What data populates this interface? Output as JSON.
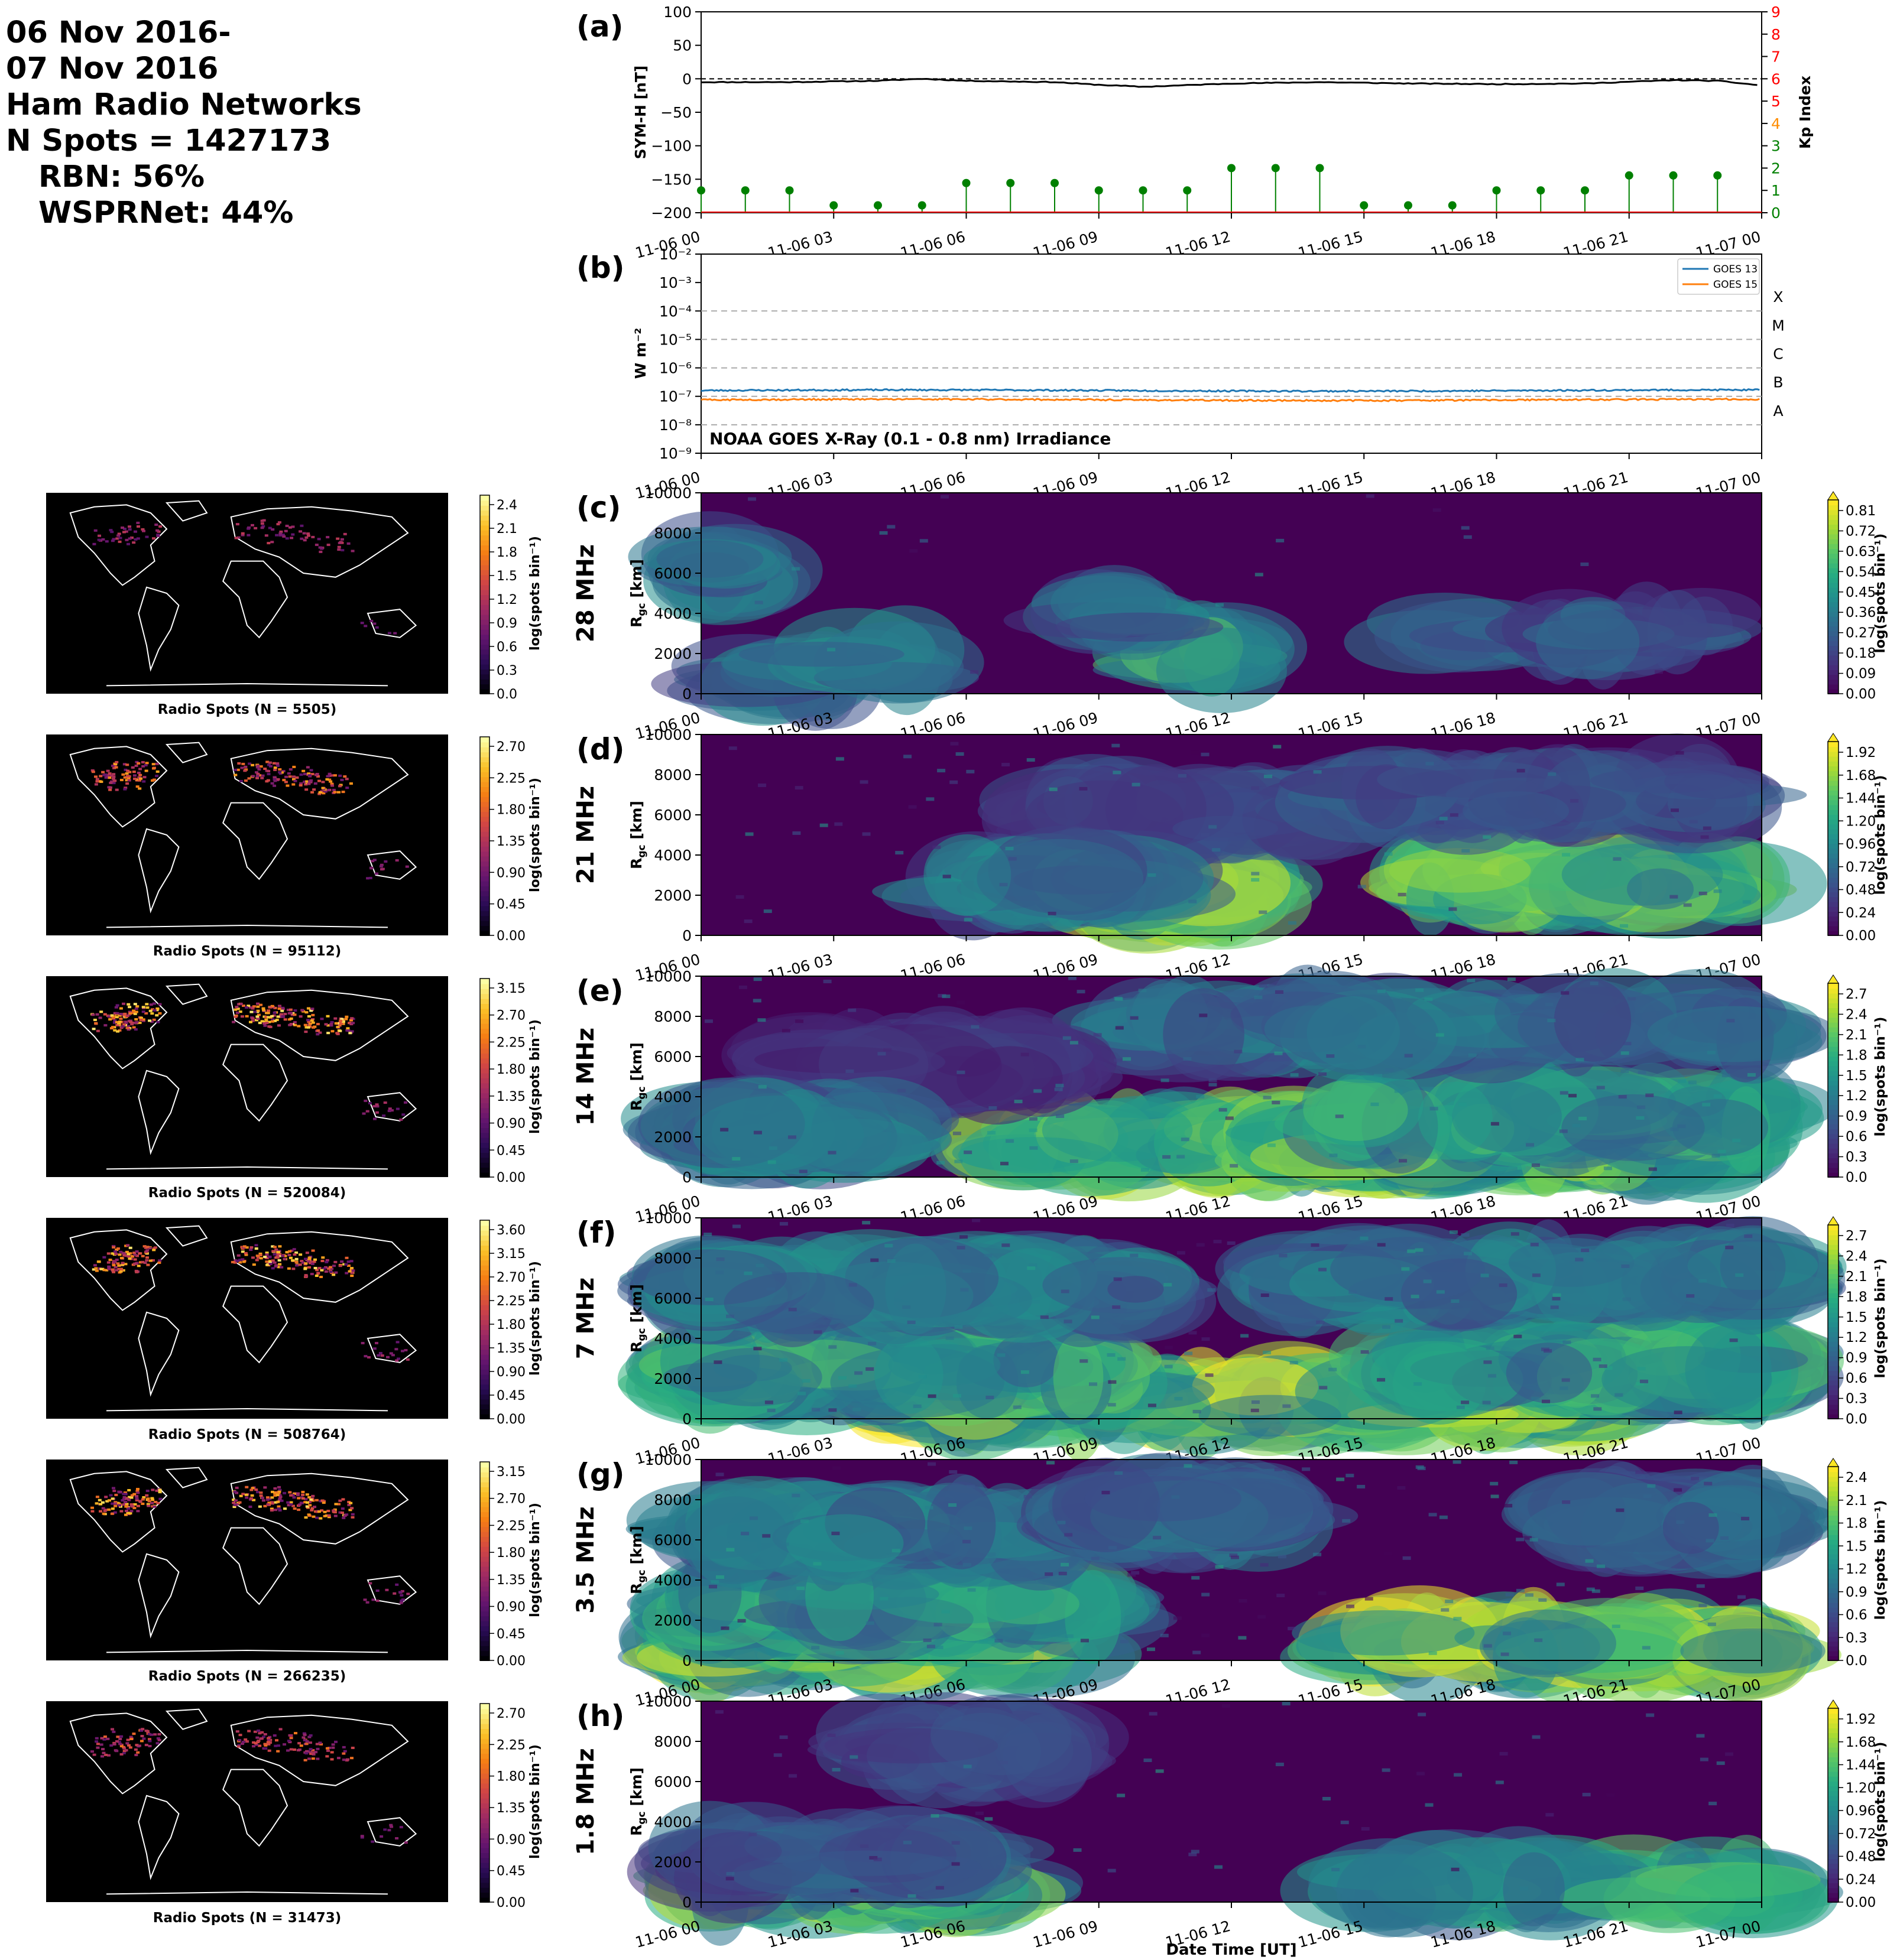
{
  "header": {
    "line1": "06 Nov 2016-",
    "line2": "07 Nov 2016",
    "line3": "Ham Radio Networks",
    "line4": "N Spots = 1427173",
    "line5": "RBN: 56%",
    "line6": "WSPRNet: 44%"
  },
  "colors": {
    "kp_green": "#008000",
    "kp_orange": "#ff8c00",
    "kp_red": "#ff0000",
    "goes13": "#1f77b4",
    "goes15": "#ff7f0e",
    "viridis_low": "#440154",
    "viridis_high": "#fde725",
    "map_bg": "#000000"
  },
  "time_ticks": [
    "11-06 00",
    "11-06 03",
    "11-06 06",
    "11-06 09",
    "11-06 12",
    "11-06 15",
    "11-06 18",
    "11-06 21",
    "11-07 00"
  ],
  "xlabel": "Date Time [UT]",
  "chart_data": [
    {
      "id": "a",
      "panel_label": "(a)",
      "type": "line",
      "ylabel": "SYM-H [nT]",
      "ylim": [
        -200,
        100
      ],
      "yticks": [
        "100",
        "50",
        "0",
        "−50",
        "−100",
        "−150",
        "−200"
      ],
      "x": [
        "11-06 00",
        "11-06 02",
        "11-06 04",
        "11-06 05",
        "11-06 06",
        "11-06 08",
        "11-06 09",
        "11-06 10",
        "11-06 12",
        "11-06 14",
        "11-06 16",
        "11-06 18",
        "11-06 20",
        "11-06 22",
        "11-06 23",
        "11-07 00"
      ],
      "symh": [
        -5,
        -5,
        -3,
        0,
        -3,
        -5,
        -9,
        -12,
        -7,
        -5,
        -7,
        -8,
        -7,
        -2,
        -3,
        -10
      ],
      "y2label": "Kp Index",
      "y2lim": [
        0,
        9
      ],
      "y2ticks": [
        "0",
        "1",
        "2",
        "3",
        "4",
        "5",
        "6",
        "7",
        "8",
        "9"
      ],
      "kp_x_hours": [
        0,
        1,
        2,
        3,
        4,
        5,
        6,
        7,
        8,
        9,
        10,
        11,
        12,
        13,
        14,
        15,
        16,
        17,
        18,
        19,
        20,
        21,
        22,
        23
      ],
      "kp": [
        1.0,
        1.0,
        1.0,
        0.33,
        0.33,
        0.33,
        1.33,
        1.33,
        1.33,
        1.0,
        1.0,
        1.0,
        2.0,
        2.0,
        2.0,
        0.33,
        0.33,
        0.33,
        1.0,
        1.0,
        1.0,
        1.67,
        1.67,
        1.67
      ]
    },
    {
      "id": "b",
      "panel_label": "(b)",
      "type": "line",
      "ylabel": "W m⁻²",
      "yscale": "log",
      "ylim": [
        1e-09,
        0.01
      ],
      "yticks": [
        "10⁻⁹",
        "10⁻⁸",
        "10⁻⁷",
        "10⁻⁶",
        "10⁻⁵",
        "10⁻⁴",
        "10⁻³",
        "10⁻²"
      ],
      "flare_classes": [
        "A",
        "B",
        "C",
        "M",
        "X"
      ],
      "annotation": "NOAA GOES X-Ray (0.1 - 0.8 nm) Irradiance",
      "series": [
        {
          "name": "GOES 13",
          "value": 1.6e-07
        },
        {
          "name": "GOES 15",
          "value": 7.5e-08
        }
      ]
    },
    {
      "type": "heatmap",
      "panels": [
        {
          "id": "c",
          "panel_label": "(c)",
          "band": "28 MHz",
          "map_title": "Radio Spots (N = 5505)",
          "map_cbar": [
            "0.0",
            "0.3",
            "0.6",
            "0.9",
            "1.2",
            "1.5",
            "1.8",
            "2.1",
            "2.4"
          ],
          "rgc_cbar": [
            "0.00",
            "0.09",
            "0.18",
            "0.27",
            "0.36",
            "0.45",
            "0.54",
            "0.63",
            "0.72",
            "0.81"
          ]
        },
        {
          "id": "d",
          "panel_label": "(d)",
          "band": "21 MHz",
          "map_title": "Radio Spots (N = 95112)",
          "map_cbar": [
            "0.00",
            "0.45",
            "0.90",
            "1.35",
            "1.80",
            "2.25",
            "2.70"
          ],
          "rgc_cbar": [
            "0.00",
            "0.24",
            "0.48",
            "0.72",
            "0.96",
            "1.20",
            "1.44",
            "1.68",
            "1.92"
          ]
        },
        {
          "id": "e",
          "panel_label": "(e)",
          "band": "14 MHz",
          "map_title": "Radio Spots (N = 520084)",
          "map_cbar": [
            "0.00",
            "0.45",
            "0.90",
            "1.35",
            "1.80",
            "2.25",
            "2.70",
            "3.15"
          ],
          "rgc_cbar": [
            "0.0",
            "0.3",
            "0.6",
            "0.9",
            "1.2",
            "1.5",
            "1.8",
            "2.1",
            "2.4",
            "2.7"
          ]
        },
        {
          "id": "f",
          "panel_label": "(f)",
          "band": "7 MHz",
          "map_title": "Radio Spots (N = 508764)",
          "map_cbar": [
            "0.00",
            "0.45",
            "0.90",
            "1.35",
            "1.80",
            "2.25",
            "2.70",
            "3.15",
            "3.60"
          ],
          "rgc_cbar": [
            "0.0",
            "0.3",
            "0.6",
            "0.9",
            "1.2",
            "1.5",
            "1.8",
            "2.1",
            "2.4",
            "2.7"
          ]
        },
        {
          "id": "g",
          "panel_label": "(g)",
          "band": "3.5 MHz",
          "map_title": "Radio Spots (N = 266235)",
          "map_cbar": [
            "0.00",
            "0.45",
            "0.90",
            "1.35",
            "1.80",
            "2.25",
            "2.70",
            "3.15"
          ],
          "rgc_cbar": [
            "0.0",
            "0.3",
            "0.6",
            "0.9",
            "1.2",
            "1.5",
            "1.8",
            "2.1",
            "2.4"
          ]
        },
        {
          "id": "h",
          "panel_label": "(h)",
          "band": "1.8 MHz",
          "map_title": "Radio Spots (N = 31473)",
          "map_cbar": [
            "0.00",
            "0.45",
            "0.90",
            "1.35",
            "1.80",
            "2.25",
            "2.70"
          ],
          "rgc_cbar": [
            "0.00",
            "0.24",
            "0.48",
            "0.72",
            "0.96",
            "1.20",
            "1.44",
            "1.68",
            "1.92"
          ]
        }
      ],
      "ylabel": "R_gc [km]",
      "ylim": [
        0,
        10000
      ],
      "yticks": [
        "0",
        "2000",
        "4000",
        "6000",
        "8000",
        "10000"
      ],
      "cbar_label": "log(spots bin⁻¹)",
      "map_cbar_label": "log(spots bin⁻¹)"
    }
  ]
}
